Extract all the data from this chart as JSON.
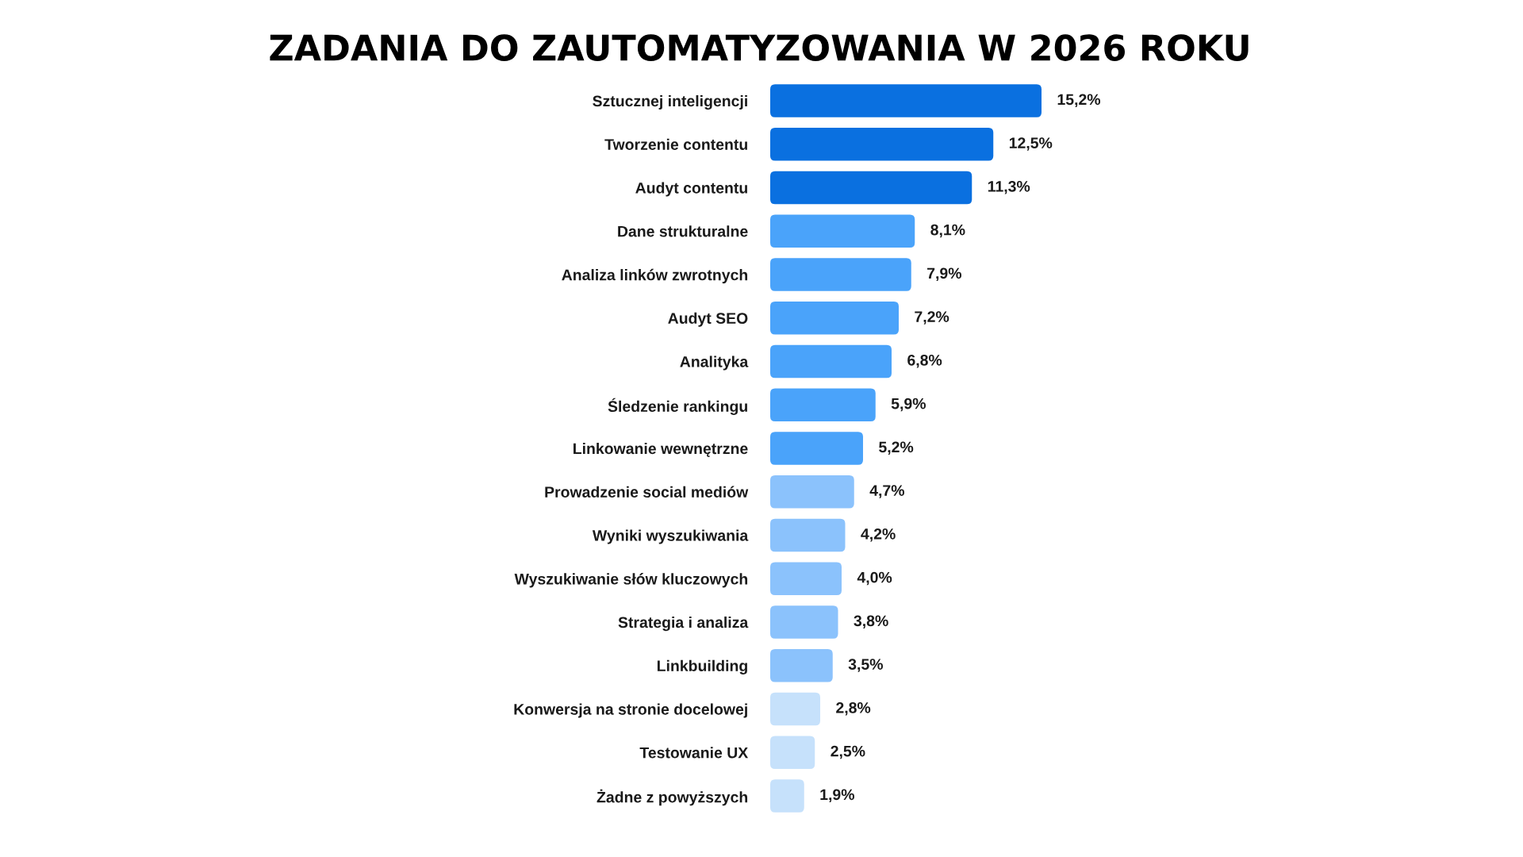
{
  "chart_data": {
    "type": "bar",
    "orientation": "horizontal",
    "title": "ZADANIA DO ZAUTOMATYZOWANIA W 2026 ROKU",
    "categories": [
      "Sztucznej inteligencji",
      "Tworzenie contentu",
      "Audyt contentu",
      "Dane strukturalne",
      "Analiza linków zwrotnych",
      "Audyt SEO",
      "Analityka",
      "Śledzenie rankingu",
      "Linkowanie wewnętrzne",
      "Prowadzenie social mediów",
      "Wyniki wyszukiwania",
      "Wyszukiwanie słów kluczowych",
      "Strategia i analiza",
      "Linkbuilding",
      "Konwersja na stronie docelowej",
      "Testowanie UX",
      "Żadne z powyższych"
    ],
    "values": [
      15.2,
      12.5,
      11.3,
      8.1,
      7.9,
      7.2,
      6.8,
      5.9,
      5.2,
      4.7,
      4.2,
      4.0,
      3.8,
      3.5,
      2.8,
      2.5,
      1.9
    ],
    "colors": [
      "#0a70e0",
      "#0a70e0",
      "#0a70e0",
      "#4aa3fa",
      "#4aa3fa",
      "#4aa3fa",
      "#4aa3fa",
      "#4aa3fa",
      "#4aa3fa",
      "#8bc2fc",
      "#8bc2fc",
      "#8bc2fc",
      "#8bc2fc",
      "#8bc2fc",
      "#c6e1fb",
      "#c6e1fb",
      "#c6e1fb"
    ],
    "value_labels": [
      "15,2%",
      "12,5%",
      "11,3%",
      "8,1%",
      "7,9%",
      "7,2%",
      "6,8%",
      "5,9%",
      "5,2%",
      "4,7%",
      "4,2%",
      "4,0%",
      "3,8%",
      "3,5%",
      "2,8%",
      "2,5%",
      "1,9%"
    ],
    "tick_labels": "y"
  }
}
